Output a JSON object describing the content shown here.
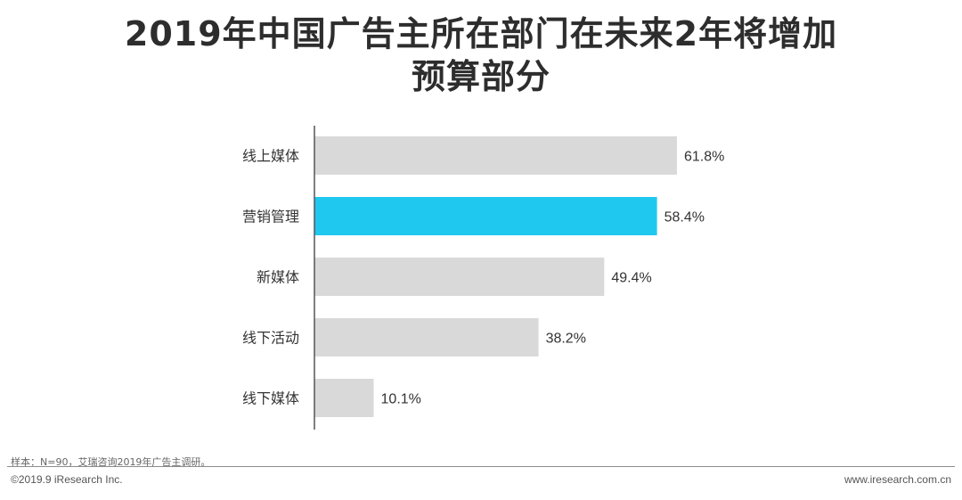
{
  "title": {
    "line1": "2019年中国广告主所在部门在未来2年将增加",
    "line2": "预算部分"
  },
  "footer": {
    "note": "样本：N=90，艾瑞咨询2019年广告主调研。",
    "copyright": "©2019.9 iResearch Inc.",
    "website": "www.iresearch.com.cn"
  },
  "colors": {
    "default_bar": "#d9d9d9",
    "highlight_bar": "#1fc8ef",
    "axis": "#555555",
    "text": "#333333"
  },
  "chart_data": {
    "type": "bar",
    "orientation": "horizontal",
    "categories": [
      "线上媒体",
      "营销管理",
      "新媒体",
      "线下活动",
      "线下媒体"
    ],
    "values": [
      61.8,
      58.4,
      49.4,
      38.2,
      10.1
    ],
    "value_labels": [
      "61.8%",
      "58.4%",
      "49.4%",
      "38.2%",
      "10.1%"
    ],
    "highlight_index": 1,
    "unit": "%",
    "xlim": [
      0,
      100
    ],
    "grid": false,
    "legend": "none"
  }
}
